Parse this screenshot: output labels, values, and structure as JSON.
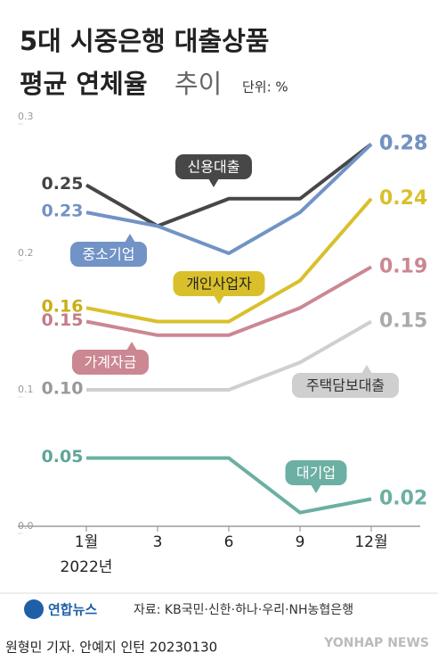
{
  "chart_data": {
    "type": "line",
    "title": [
      "5대 시중은행 대출상품",
      "평균 연체율",
      "추이"
    ],
    "unit": "단위: %",
    "categories": [
      "1월",
      "3",
      "6",
      "9",
      "12월"
    ],
    "year_label": "2022년",
    "ylim": [
      0,
      0.3
    ],
    "yticks": [
      {
        "value": 0,
        "label": "0.0"
      },
      0.1,
      0.2,
      0.3
    ],
    "grid": false,
    "series": [
      {
        "name": "신용대출",
        "color": "#474747",
        "values": [
          0.25,
          0.22,
          0.24,
          0.24,
          0.28
        ],
        "value_labels": [
          "0.25",
          null,
          null,
          null,
          "0.28"
        ]
      },
      {
        "name": "중소기업",
        "color": "#7193c6",
        "values": [
          0.23,
          0.22,
          0.2,
          0.23,
          0.28
        ],
        "value_labels": [
          "0.23",
          null,
          null,
          null,
          "0.28"
        ]
      },
      {
        "name": "개인사업자",
        "color": "#d9c02b",
        "values": [
          0.16,
          0.15,
          0.15,
          0.18,
          0.24
        ],
        "value_labels": [
          "0.16",
          null,
          null,
          null,
          "0.24"
        ]
      },
      {
        "name": "가계자금",
        "color": "#cb8792",
        "values": [
          0.15,
          0.14,
          0.14,
          0.16,
          0.19
        ],
        "value_labels": [
          "0.15",
          null,
          null,
          null,
          "0.19"
        ]
      },
      {
        "name": "주택담보대출",
        "color": "#cfcfcf",
        "values": [
          0.1,
          0.1,
          0.1,
          0.12,
          0.15
        ],
        "value_labels": [
          "0.10",
          null,
          null,
          null,
          "0.15"
        ]
      },
      {
        "name": "대기업",
        "color": "#6bb0a2",
        "values": [
          0.05,
          0.05,
          0.05,
          0.01,
          0.02
        ],
        "value_labels": [
          "0.05",
          null,
          null,
          null,
          "0.02"
        ]
      }
    ],
    "logo": "연합뉴스",
    "source": "자료: KB국민·신한·하나·우리·NH농협은행",
    "credit": "원형민 기자. 안예지 인턴  20230130",
    "watermark": "YONHAP NEWS"
  }
}
